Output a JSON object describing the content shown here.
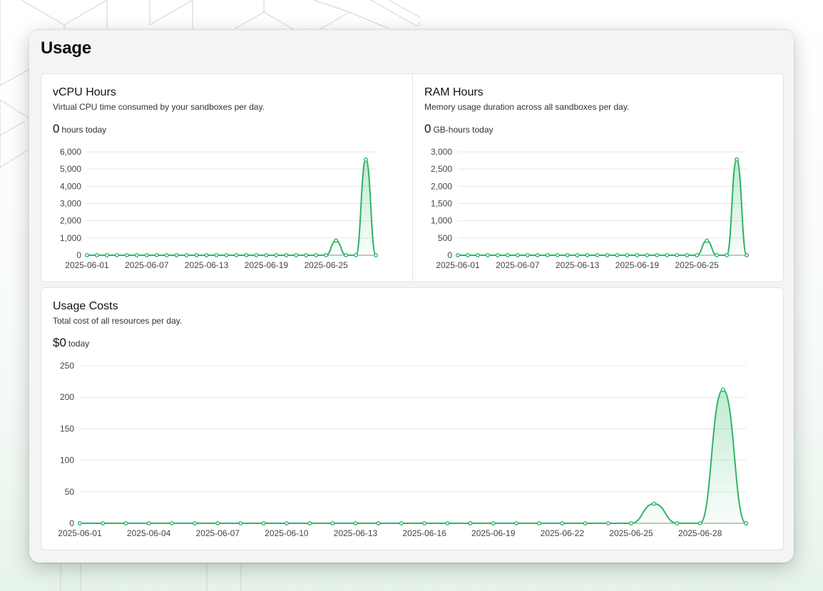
{
  "page": {
    "title": "Usage"
  },
  "vcpu": {
    "title": "vCPU Hours",
    "description": "Virtual CPU time consumed by your sandboxes per day.",
    "stat_value": "0",
    "stat_unit": "hours today"
  },
  "ram": {
    "title": "RAM Hours",
    "description": "Memory usage duration across all sandboxes per day.",
    "stat_value": "0",
    "stat_unit": "GB-hours today"
  },
  "costs": {
    "title": "Usage Costs",
    "description": "Total cost of all resources per day.",
    "stat_value": "$0",
    "stat_unit": "today"
  },
  "colors": {
    "series": "#2fb566",
    "fill": "#4cc27c",
    "grid": "#e5e5e5",
    "axis": "#8a8a8a"
  },
  "chart_data": [
    {
      "id": "vcpu",
      "type": "area",
      "x": [
        "2025-06-01",
        "2025-06-02",
        "2025-06-03",
        "2025-06-04",
        "2025-06-05",
        "2025-06-06",
        "2025-06-07",
        "2025-06-08",
        "2025-06-09",
        "2025-06-10",
        "2025-06-11",
        "2025-06-12",
        "2025-06-13",
        "2025-06-14",
        "2025-06-15",
        "2025-06-16",
        "2025-06-17",
        "2025-06-18",
        "2025-06-19",
        "2025-06-20",
        "2025-06-21",
        "2025-06-22",
        "2025-06-23",
        "2025-06-24",
        "2025-06-25",
        "2025-06-26",
        "2025-06-27",
        "2025-06-28",
        "2025-06-29",
        "2025-06-30"
      ],
      "values": [
        0,
        0,
        0,
        0,
        0,
        0,
        0,
        0,
        0,
        0,
        0,
        0,
        0,
        0,
        0,
        0,
        0,
        0,
        0,
        0,
        0,
        0,
        0,
        0,
        0,
        850,
        0,
        0,
        5550,
        0
      ],
      "xticks": [
        "2025-06-01",
        "2025-06-07",
        "2025-06-13",
        "2025-06-19",
        "2025-06-25"
      ],
      "yticks": [
        "0",
        "1,000",
        "2,000",
        "3,000",
        "4,000",
        "5,000",
        "6,000"
      ],
      "ylim": [
        0,
        6000
      ],
      "grid": true
    },
    {
      "id": "ram",
      "type": "area",
      "x": [
        "2025-06-01",
        "2025-06-02",
        "2025-06-03",
        "2025-06-04",
        "2025-06-05",
        "2025-06-06",
        "2025-06-07",
        "2025-06-08",
        "2025-06-09",
        "2025-06-10",
        "2025-06-11",
        "2025-06-12",
        "2025-06-13",
        "2025-06-14",
        "2025-06-15",
        "2025-06-16",
        "2025-06-17",
        "2025-06-18",
        "2025-06-19",
        "2025-06-20",
        "2025-06-21",
        "2025-06-22",
        "2025-06-23",
        "2025-06-24",
        "2025-06-25",
        "2025-06-26",
        "2025-06-27",
        "2025-06-28",
        "2025-06-29",
        "2025-06-30"
      ],
      "values": [
        0,
        0,
        0,
        0,
        0,
        0,
        0,
        0,
        0,
        0,
        0,
        0,
        0,
        0,
        0,
        0,
        0,
        0,
        0,
        0,
        0,
        0,
        0,
        0,
        0,
        420,
        0,
        0,
        2780,
        0
      ],
      "xticks": [
        "2025-06-01",
        "2025-06-07",
        "2025-06-13",
        "2025-06-19",
        "2025-06-25"
      ],
      "yticks": [
        "0",
        "500",
        "1,000",
        "1,500",
        "2,000",
        "2,500",
        "3,000"
      ],
      "ylim": [
        0,
        3000
      ],
      "grid": true
    },
    {
      "id": "costs",
      "type": "area",
      "x": [
        "2025-06-01",
        "2025-06-02",
        "2025-06-03",
        "2025-06-04",
        "2025-06-05",
        "2025-06-06",
        "2025-06-07",
        "2025-06-08",
        "2025-06-09",
        "2025-06-10",
        "2025-06-11",
        "2025-06-12",
        "2025-06-13",
        "2025-06-14",
        "2025-06-15",
        "2025-06-16",
        "2025-06-17",
        "2025-06-18",
        "2025-06-19",
        "2025-06-20",
        "2025-06-21",
        "2025-06-22",
        "2025-06-23",
        "2025-06-24",
        "2025-06-25",
        "2025-06-26",
        "2025-06-27",
        "2025-06-28",
        "2025-06-29",
        "2025-06-30"
      ],
      "values": [
        0,
        0,
        0,
        0,
        0,
        0,
        0,
        0,
        0,
        0,
        0,
        0,
        0,
        0,
        0,
        0,
        0,
        0,
        0,
        0,
        0,
        0,
        0,
        0,
        0,
        31,
        0,
        0,
        212,
        0
      ],
      "xticks": [
        "2025-06-01",
        "2025-06-04",
        "2025-06-07",
        "2025-06-10",
        "2025-06-13",
        "2025-06-16",
        "2025-06-19",
        "2025-06-22",
        "2025-06-25",
        "2025-06-28"
      ],
      "yticks": [
        "0",
        "50",
        "100",
        "150",
        "200",
        "250"
      ],
      "ylim": [
        0,
        250
      ],
      "grid": true
    }
  ]
}
